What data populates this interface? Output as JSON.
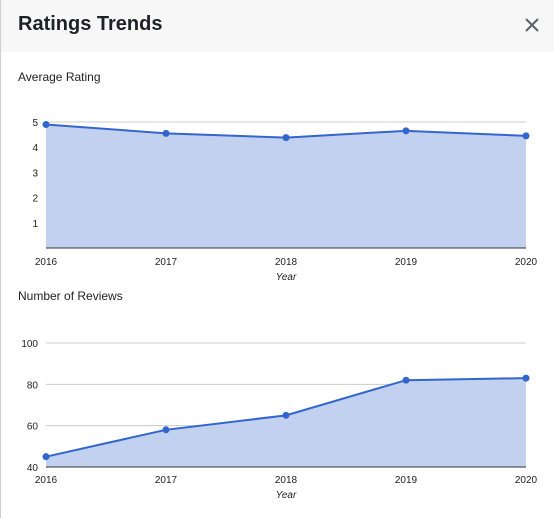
{
  "dialog": {
    "title": "Ratings Trends",
    "close_icon": "close-icon"
  },
  "colors": {
    "line": "#3366cc",
    "fill": "#c2d1ef",
    "grid": "#cccccc",
    "axis_text": "#222222"
  },
  "chart_data": [
    {
      "type": "area",
      "title": "Average Rating",
      "xlabel": "Year",
      "ylabel": "",
      "x": [
        "2016",
        "2017",
        "2018",
        "2019",
        "2020"
      ],
      "series": [
        {
          "values": [
            4.9,
            4.55,
            4.38,
            4.65,
            4.45
          ]
        }
      ],
      "ylim": [
        0,
        5
      ],
      "y_ticks": [
        "1",
        "2",
        "3",
        "4",
        "5"
      ],
      "grid": true,
      "legend": "none"
    },
    {
      "type": "area",
      "title": "Number of Reviews",
      "xlabel": "Year",
      "ylabel": "",
      "x": [
        "2016",
        "2017",
        "2018",
        "2019",
        "2020"
      ],
      "series": [
        {
          "values": [
            45,
            58,
            65,
            82,
            83
          ]
        }
      ],
      "ylim": [
        40,
        100
      ],
      "y_ticks": [
        "40",
        "60",
        "80",
        "100"
      ],
      "grid": true,
      "legend": "none"
    }
  ]
}
